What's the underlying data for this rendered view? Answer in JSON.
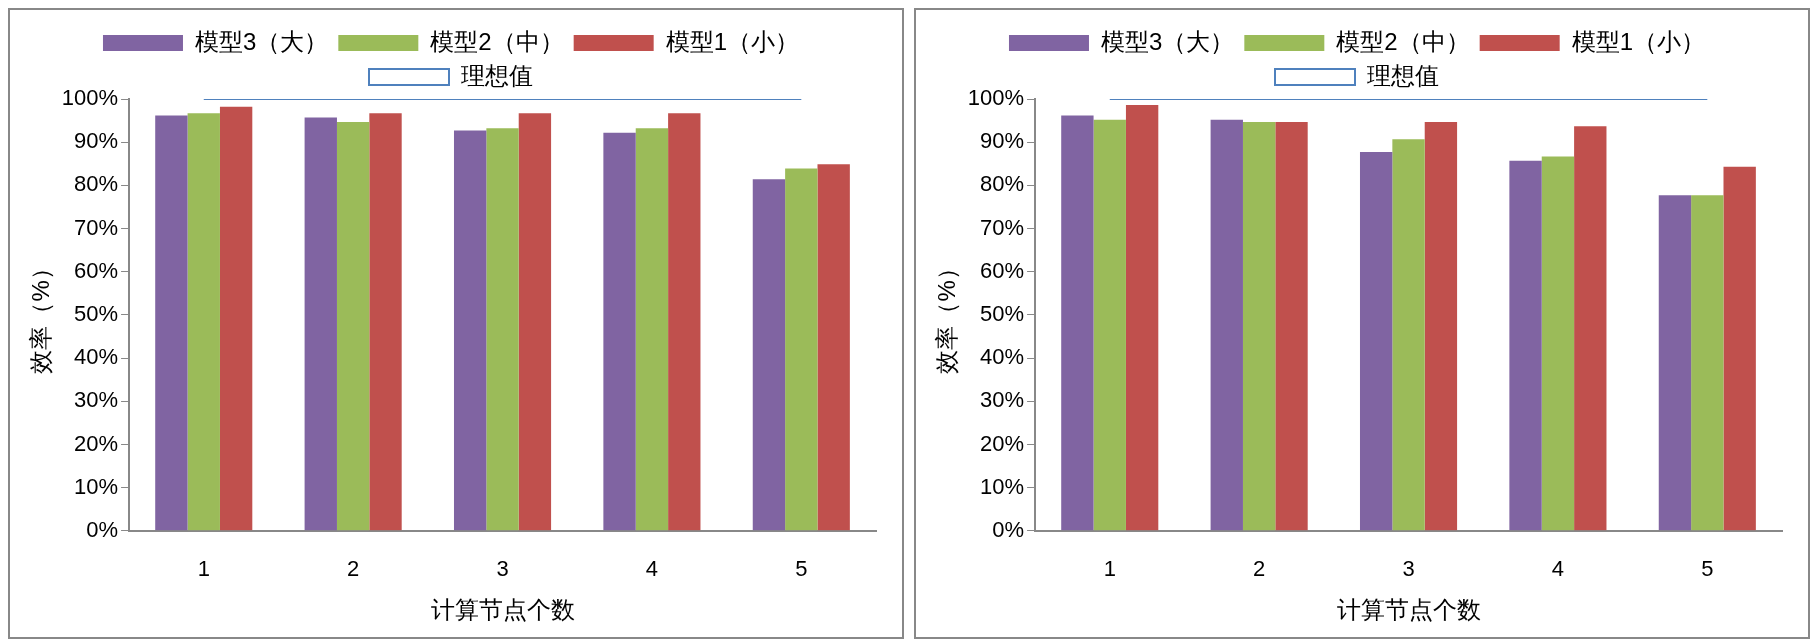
{
  "chart_data": [
    {
      "type": "bar",
      "xlabel": "计算节点个数",
      "ylabel": "效率（%）",
      "categories": [
        "1",
        "2",
        "3",
        "4",
        "5"
      ],
      "series": [
        {
          "name": "模型3（大）",
          "color": "#8064a2",
          "values": [
            96.2,
            95.7,
            92.7,
            92.2,
            81.4
          ]
        },
        {
          "name": "模型2（中）",
          "color": "#9bbb59",
          "values": [
            96.7,
            94.7,
            93.2,
            93.2,
            83.9
          ]
        },
        {
          "name": "模型1（小）",
          "color": "#c0504d",
          "values": [
            98.2,
            96.7,
            96.7,
            96.7,
            84.9
          ]
        },
        {
          "name": "理想值",
          "type": "line",
          "color": "#4f81bd",
          "values": [
            100,
            100,
            100,
            100,
            100
          ]
        }
      ],
      "ylim": [
        0,
        100
      ],
      "yticks": [
        {
          "value": 0,
          "label": "0%"
        },
        {
          "value": 10,
          "label": "10%"
        },
        {
          "value": 20,
          "label": "20%"
        },
        {
          "value": 30,
          "label": "30%"
        },
        {
          "value": 40,
          "label": "40%"
        },
        {
          "value": 50,
          "label": "50%"
        },
        {
          "value": 60,
          "label": "60%"
        },
        {
          "value": 70,
          "label": "70%"
        },
        {
          "value": 80,
          "label": "80%"
        },
        {
          "value": 90,
          "label": "90%"
        },
        {
          "value": 100,
          "label": "100%"
        }
      ],
      "grid": false,
      "legend": "top",
      "marker": "none"
    },
    {
      "type": "bar",
      "xlabel": "计算节点个数",
      "ylabel": "效率（%）",
      "categories": [
        "1",
        "2",
        "3",
        "4",
        "5"
      ],
      "series": [
        {
          "name": "模型3（大）",
          "color": "#8064a2",
          "values": [
            96.2,
            95.2,
            87.7,
            85.7,
            77.7
          ]
        },
        {
          "name": "模型2（中）",
          "color": "#9bbb59",
          "values": [
            95.2,
            94.7,
            90.7,
            86.7,
            77.7
          ]
        },
        {
          "name": "模型1（小）",
          "color": "#c0504d",
          "values": [
            98.6,
            94.7,
            94.7,
            93.7,
            84.3
          ]
        },
        {
          "name": "理想值",
          "type": "line",
          "color": "#4f81bd",
          "values": [
            100,
            100,
            100,
            100,
            100
          ]
        }
      ],
      "ylim": [
        0,
        100
      ],
      "yticks": [
        {
          "value": 0,
          "label": "0%"
        },
        {
          "value": 10,
          "label": "10%"
        },
        {
          "value": 20,
          "label": "20%"
        },
        {
          "value": 30,
          "label": "30%"
        },
        {
          "value": 40,
          "label": "40%"
        },
        {
          "value": 50,
          "label": "50%"
        },
        {
          "value": 60,
          "label": "60%"
        },
        {
          "value": 70,
          "label": "70%"
        },
        {
          "value": 80,
          "label": "80%"
        },
        {
          "value": 90,
          "label": "90%"
        },
        {
          "value": 100,
          "label": "100%"
        }
      ],
      "grid": false,
      "legend": "top",
      "marker": "none"
    }
  ]
}
